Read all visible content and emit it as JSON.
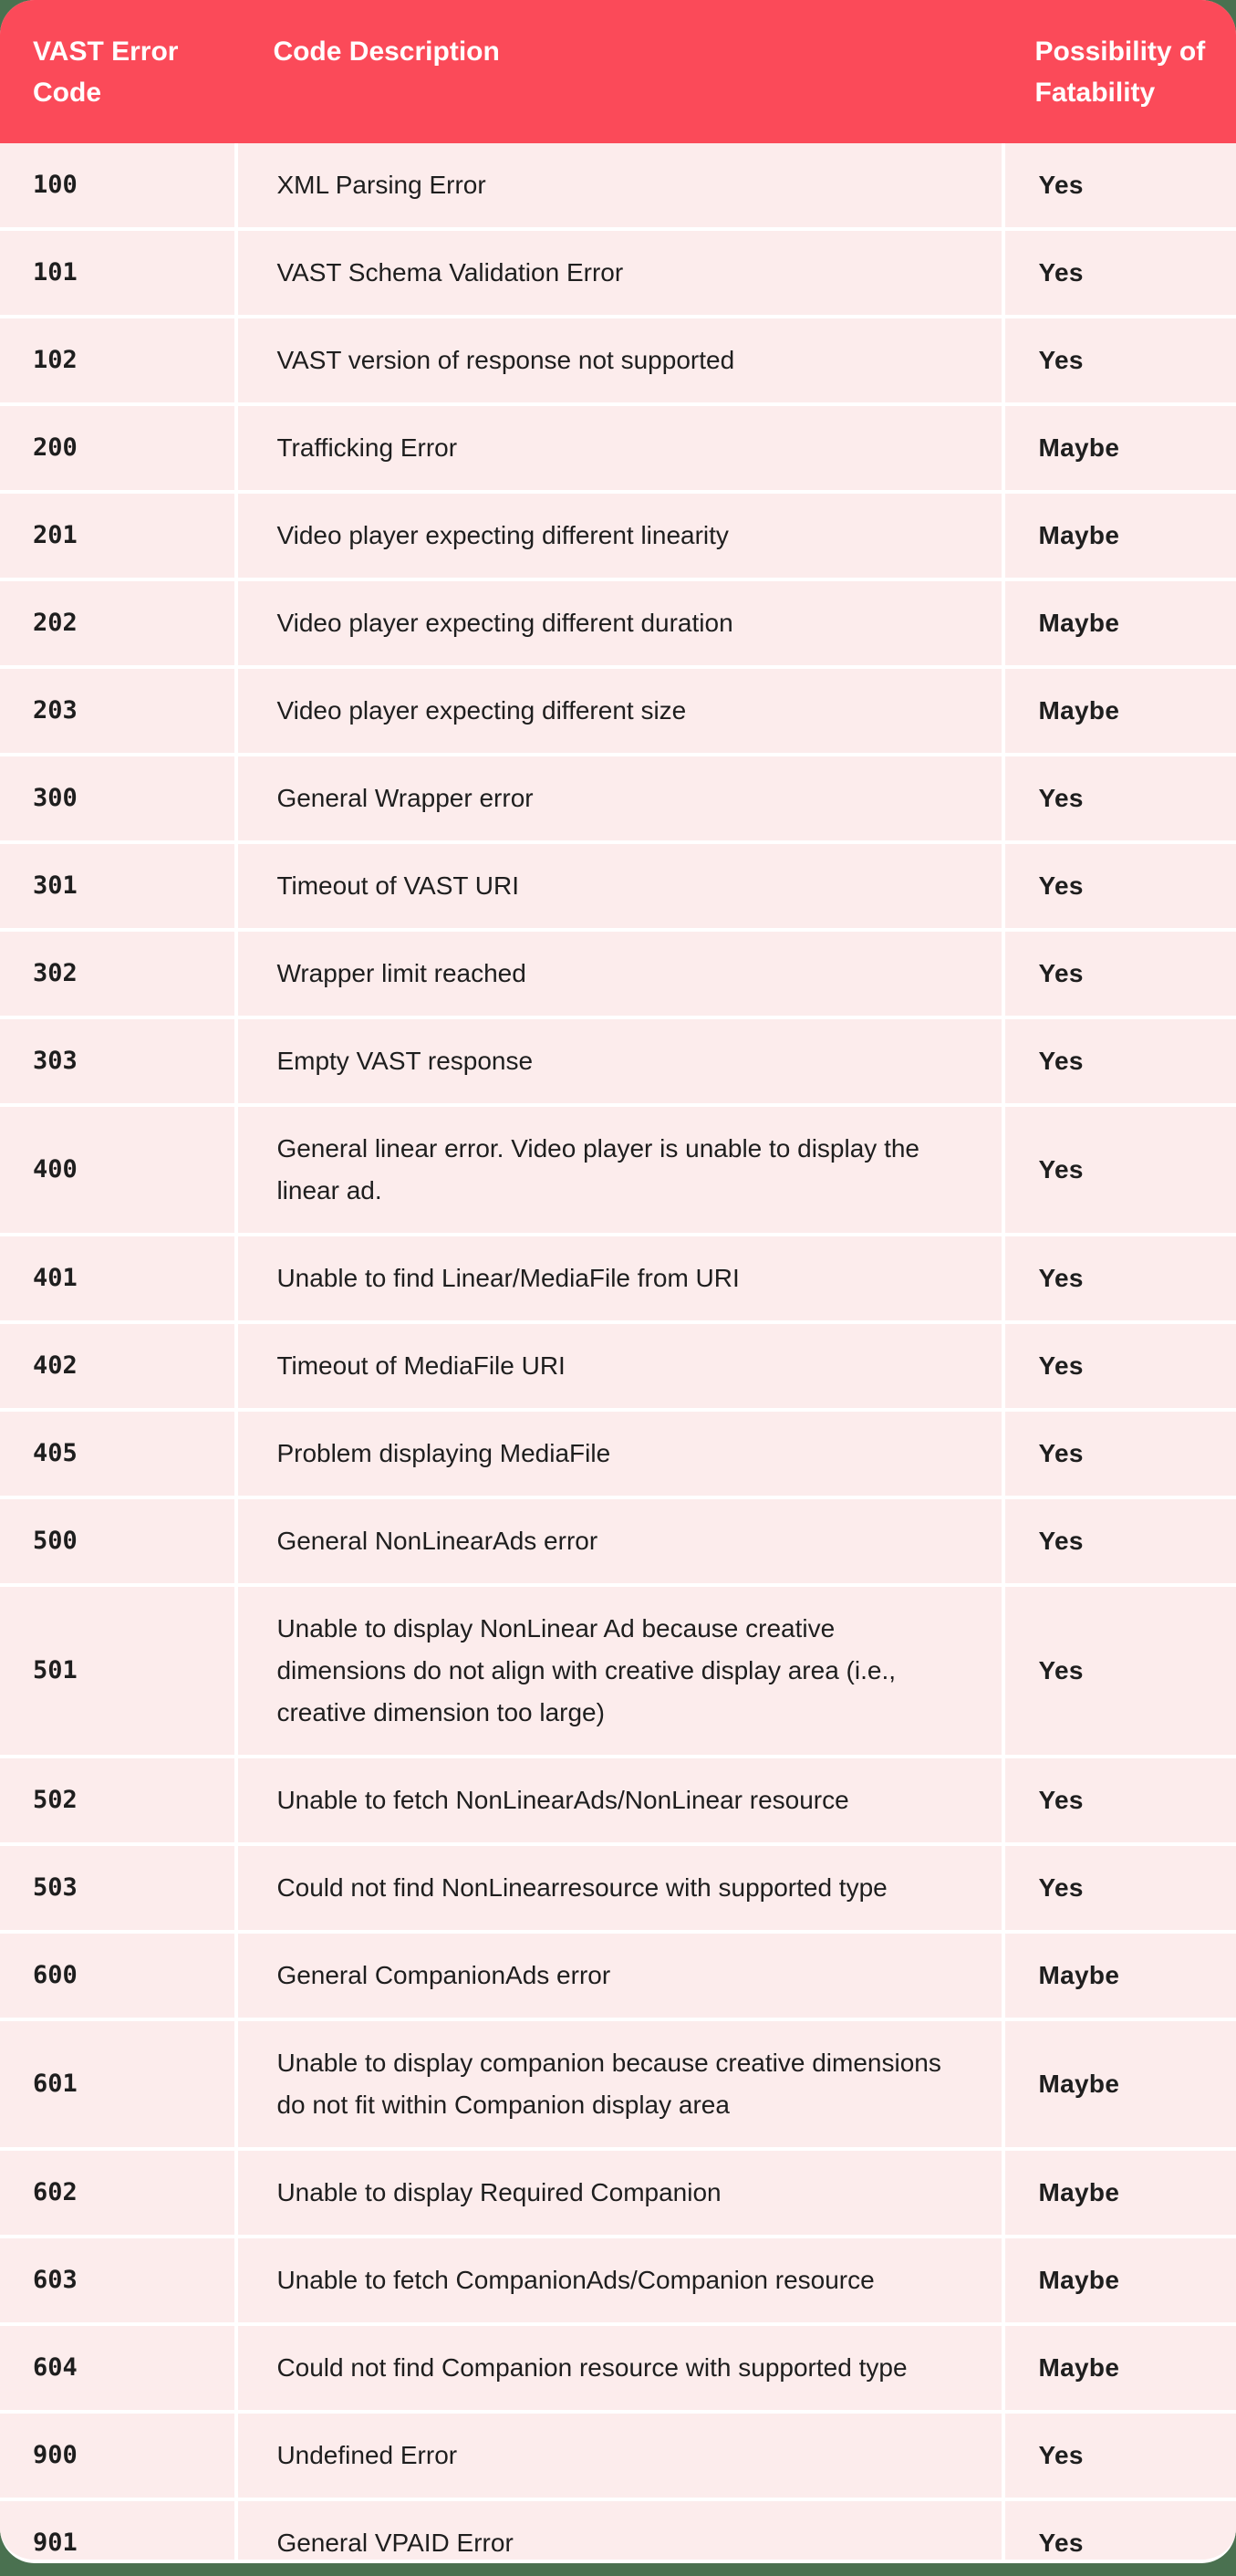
{
  "table": {
    "columns": [
      {
        "label": "VAST Error Code"
      },
      {
        "label": "Code Description"
      },
      {
        "label": "Possibility of Fatability"
      }
    ],
    "rows": [
      {
        "code": "100",
        "description": "XML Parsing Error",
        "fatability": "Yes"
      },
      {
        "code": "101",
        "description": "VAST Schema Validation Error",
        "fatability": "Yes"
      },
      {
        "code": "102",
        "description": "VAST version of response not supported",
        "fatability": "Yes"
      },
      {
        "code": "200",
        "description": "Trafficking Error",
        "fatability": "Maybe"
      },
      {
        "code": "201",
        "description": "Video player expecting different linearity",
        "fatability": "Maybe"
      },
      {
        "code": "202",
        "description": "Video player expecting different duration",
        "fatability": "Maybe"
      },
      {
        "code": "203",
        "description": "Video player expecting different size",
        "fatability": "Maybe"
      },
      {
        "code": "300",
        "description": "General Wrapper error",
        "fatability": "Yes"
      },
      {
        "code": "301",
        "description": "Timeout of VAST URI",
        "fatability": "Yes"
      },
      {
        "code": "302",
        "description": "Wrapper limit reached",
        "fatability": "Yes"
      },
      {
        "code": "303",
        "description": "Empty VAST response",
        "fatability": "Yes"
      },
      {
        "code": "400",
        "description": "General linear error. Video player is unable to display the linear ad.",
        "fatability": "Yes"
      },
      {
        "code": "401",
        "description": "Unable to find Linear/MediaFile from URI",
        "fatability": "Yes"
      },
      {
        "code": "402",
        "description": "Timeout of MediaFile URI",
        "fatability": "Yes"
      },
      {
        "code": "405",
        "description": "Problem displaying MediaFile",
        "fatability": "Yes"
      },
      {
        "code": "500",
        "description": "General NonLinearAds error",
        "fatability": "Yes"
      },
      {
        "code": "501",
        "description": "Unable to display NonLinear Ad because creative dimensions do not align with creative display area (i.e., creative dimension too large)",
        "fatability": "Yes"
      },
      {
        "code": "502",
        "description": "Unable to fetch NonLinearAds/NonLinear resource",
        "fatability": "Yes"
      },
      {
        "code": "503",
        "description": "Could not find NonLinearresource with supported type",
        "fatability": "Yes"
      },
      {
        "code": "600",
        "description": "General CompanionAds error",
        "fatability": "Maybe"
      },
      {
        "code": "601",
        "description": "Unable to display companion because creative dimensions do not fit within Companion display area",
        "fatability": "Maybe"
      },
      {
        "code": "602",
        "description": "Unable to display Required Companion",
        "fatability": "Maybe"
      },
      {
        "code": "603",
        "description": "Unable to fetch CompanionAds/Companion resource",
        "fatability": "Maybe"
      },
      {
        "code": "604",
        "description": "Could not find Companion resource with supported type",
        "fatability": "Maybe"
      },
      {
        "code": "900",
        "description": "Undefined Error",
        "fatability": "Yes"
      },
      {
        "code": "901",
        "description": "General VPAID Error",
        "fatability": "Yes"
      }
    ]
  },
  "colors": {
    "header_bg": "#fb4a59",
    "header_text": "#ffffff",
    "row_bg": "#fcecec",
    "divider": "#ffffff",
    "body_text": "#1e1e1e",
    "page_bg": "#4a7150"
  }
}
